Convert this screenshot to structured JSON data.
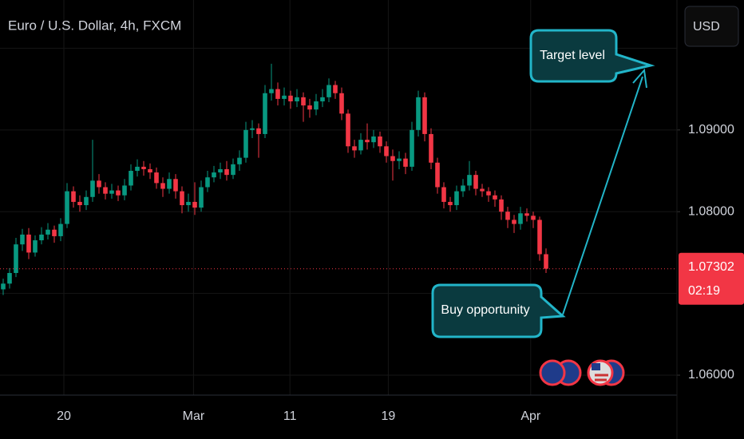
{
  "chart_data": {
    "type": "candlestick",
    "title": "Euro / U.S. Dollar, 4h, FXCM",
    "currency": "USD",
    "up_color": "#089981",
    "down_color": "#f23645",
    "open": [
      1.0705,
      1.0712,
      1.0725,
      1.076,
      1.0772,
      1.075,
      1.0765,
      1.0772,
      1.0778,
      1.077,
      1.0785,
      1.0825,
      1.0812,
      1.0808,
      1.0818,
      1.0838,
      1.083,
      1.0822,
      1.0826,
      1.082,
      1.0832,
      1.085,
      1.0855,
      1.0852,
      1.0848,
      1.0835,
      1.0828,
      1.084,
      1.0825,
      1.0808,
      1.0812,
      1.0805,
      1.083,
      1.0842,
      1.0848,
      1.0852,
      1.0845,
      1.0858,
      1.0866,
      1.09,
      1.0902,
      1.0895,
      1.0945,
      1.095,
      1.0938,
      1.0942,
      1.0935,
      1.094,
      1.093,
      1.0925,
      1.0935,
      1.094,
      1.0955,
      1.0945,
      1.092,
      1.088,
      1.0875,
      1.0888,
      1.0885,
      1.0892,
      1.088,
      1.0868,
      1.0862,
      1.0865,
      1.0855,
      1.09,
      1.094,
      1.0895,
      1.086,
      1.083,
      1.0812,
      1.0808,
      1.0825,
      1.0832,
      1.0845,
      1.0828,
      1.0825,
      1.082,
      1.0815,
      1.08,
      1.079,
      1.0785,
      1.0798,
      1.0795,
      1.079,
      1.0748
    ],
    "high": [
      1.0718,
      1.0731,
      1.0768,
      1.0779,
      1.078,
      1.0771,
      1.0781,
      1.0786,
      1.0783,
      1.0792,
      1.0835,
      1.0831,
      1.082,
      1.0826,
      1.0888,
      1.0846,
      1.0836,
      1.0834,
      1.0832,
      1.084,
      1.0858,
      1.0864,
      1.0862,
      1.0859,
      1.0854,
      1.0842,
      1.0848,
      1.0846,
      1.0831,
      1.0822,
      1.0836,
      1.0838,
      1.085,
      1.0856,
      1.086,
      1.0862,
      1.0865,
      1.0875,
      1.091,
      1.0912,
      1.0908,
      1.0955,
      1.0981,
      1.0958,
      1.0952,
      1.0948,
      1.095,
      1.0946,
      1.0938,
      1.0944,
      1.095,
      1.0963,
      1.096,
      1.0952,
      1.0925,
      1.0888,
      1.0896,
      1.0908,
      1.09,
      1.0898,
      1.0886,
      1.0876,
      1.0874,
      1.0872,
      1.091,
      1.0948,
      1.0946,
      1.0902,
      1.0866,
      1.0836,
      1.0818,
      1.0832,
      1.084,
      1.0862,
      1.085,
      1.0834,
      1.083,
      1.0826,
      1.082,
      1.0806,
      1.0796,
      1.0806,
      1.0804,
      1.08,
      1.0794,
      1.0755
    ],
    "low": [
      1.0698,
      1.0706,
      1.072,
      1.0752,
      1.0742,
      1.0745,
      1.076,
      1.0766,
      1.0762,
      1.0764,
      1.078,
      1.0805,
      1.08,
      1.0802,
      1.0812,
      1.0822,
      1.0815,
      1.0816,
      1.0813,
      1.0814,
      1.0826,
      1.0843,
      1.0844,
      1.084,
      1.0828,
      1.0818,
      1.0822,
      1.0816,
      1.0798,
      1.08,
      1.0796,
      1.08,
      1.0824,
      1.0836,
      1.084,
      1.0838,
      1.084,
      1.085,
      1.086,
      1.089,
      1.0866,
      1.089,
      1.0936,
      1.093,
      1.093,
      1.0926,
      1.0928,
      1.091,
      1.0915,
      1.0918,
      1.0928,
      1.0934,
      1.0938,
      1.0912,
      1.0872,
      1.0866,
      1.087,
      1.0876,
      1.0878,
      1.0872,
      1.086,
      1.0838,
      1.0852,
      1.0846,
      1.085,
      1.0892,
      1.0886,
      1.0852,
      1.0822,
      1.0804,
      1.08,
      1.0802,
      1.0818,
      1.0826,
      1.082,
      1.0818,
      1.0812,
      1.0806,
      1.079,
      1.078,
      1.0774,
      1.0778,
      1.0788,
      1.078,
      1.074,
      1.0725
    ],
    "close": [
      1.0712,
      1.0725,
      1.076,
      1.0772,
      1.075,
      1.0765,
      1.0772,
      1.0778,
      1.077,
      1.0785,
      1.0825,
      1.0812,
      1.0808,
      1.0818,
      1.0838,
      1.083,
      1.0822,
      1.0826,
      1.082,
      1.0832,
      1.085,
      1.0855,
      1.0852,
      1.0848,
      1.0835,
      1.0828,
      1.084,
      1.0825,
      1.0808,
      1.0812,
      1.0805,
      1.083,
      1.0842,
      1.0848,
      1.0852,
      1.0845,
      1.0858,
      1.0866,
      1.09,
      1.0902,
      1.0895,
      1.0945,
      1.095,
      1.0938,
      1.0942,
      1.0935,
      1.094,
      1.093,
      1.0925,
      1.0935,
      1.094,
      1.0955,
      1.0945,
      1.092,
      1.088,
      1.0875,
      1.0888,
      1.0885,
      1.0892,
      1.088,
      1.0868,
      1.0862,
      1.0865,
      1.0855,
      1.09,
      1.094,
      1.0895,
      1.086,
      1.083,
      1.0812,
      1.0808,
      1.0825,
      1.0832,
      1.0845,
      1.0828,
      1.0825,
      1.082,
      1.0815,
      1.08,
      1.079,
      1.0785,
      1.0798,
      1.0795,
      1.079,
      1.0748,
      1.07302
    ],
    "current_price": 1.07302,
    "countdown": "02:19",
    "ylim": [
      1.05756,
      1.1059
    ],
    "yticks": [
      {
        "value": 1.09,
        "label": "1.09000"
      },
      {
        "value": 1.08,
        "label": "1.08000"
      },
      {
        "value": 1.06,
        "label": "1.06000"
      }
    ],
    "ygrid": [
      1.06,
      1.07,
      1.08,
      1.09,
      1.1
    ],
    "xlim": [
      -0.5,
      105.5
    ],
    "xticks": [
      {
        "value": 9.5,
        "label": "20"
      },
      {
        "value": 29.8,
        "label": "Mar"
      },
      {
        "value": 44.9,
        "label": "11"
      },
      {
        "value": 60.3,
        "label": "19"
      },
      {
        "value": 82.6,
        "label": "Apr"
      }
    ],
    "annotations": [
      "Target level",
      "Buy opportunity"
    ]
  }
}
